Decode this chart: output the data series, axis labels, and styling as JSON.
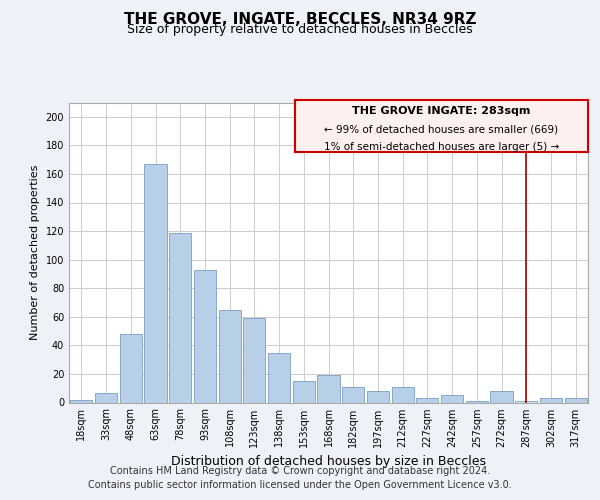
{
  "title": "THE GROVE, INGATE, BECCLES, NR34 9RZ",
  "subtitle": "Size of property relative to detached houses in Beccles",
  "xlabel": "Distribution of detached houses by size in Beccles",
  "ylabel": "Number of detached properties",
  "footer_line1": "Contains HM Land Registry data © Crown copyright and database right 2024.",
  "footer_line2": "Contains public sector information licensed under the Open Government Licence v3.0.",
  "categories": [
    "18sqm",
    "33sqm",
    "48sqm",
    "63sqm",
    "78sqm",
    "93sqm",
    "108sqm",
    "123sqm",
    "138sqm",
    "153sqm",
    "168sqm",
    "182sqm",
    "197sqm",
    "212sqm",
    "227sqm",
    "242sqm",
    "257sqm",
    "272sqm",
    "287sqm",
    "302sqm",
    "317sqm"
  ],
  "values": [
    2,
    7,
    48,
    167,
    119,
    93,
    65,
    59,
    35,
    15,
    19,
    11,
    8,
    11,
    3,
    5,
    1,
    8,
    1,
    3,
    3
  ],
  "bar_color": "#b8cfe8",
  "highlight_color": "#d8e8f8",
  "highlight_index": 18,
  "vline_color": "#aa0000",
  "vline_index": 18,
  "ann_line1": "THE GROVE INGATE: 283sqm",
  "ann_line2": "← 99% of detached houses are smaller (669)",
  "ann_line3": "1% of semi-detached houses are larger (5) →",
  "annotation_box_facecolor": "#fff0f0",
  "annotation_box_edgecolor": "#cc0000",
  "ylim": [
    0,
    210
  ],
  "yticks": [
    0,
    20,
    40,
    60,
    80,
    100,
    120,
    140,
    160,
    180,
    200
  ],
  "background_color": "#eef2f8",
  "plot_bg": "#ffffff",
  "grid_color": "#cccccc",
  "title_fontsize": 11,
  "subtitle_fontsize": 9,
  "ylabel_fontsize": 8,
  "xlabel_fontsize": 9,
  "tick_fontsize": 7,
  "ann_fontsize_title": 8,
  "ann_fontsize_body": 7.5,
  "footer_fontsize": 7
}
